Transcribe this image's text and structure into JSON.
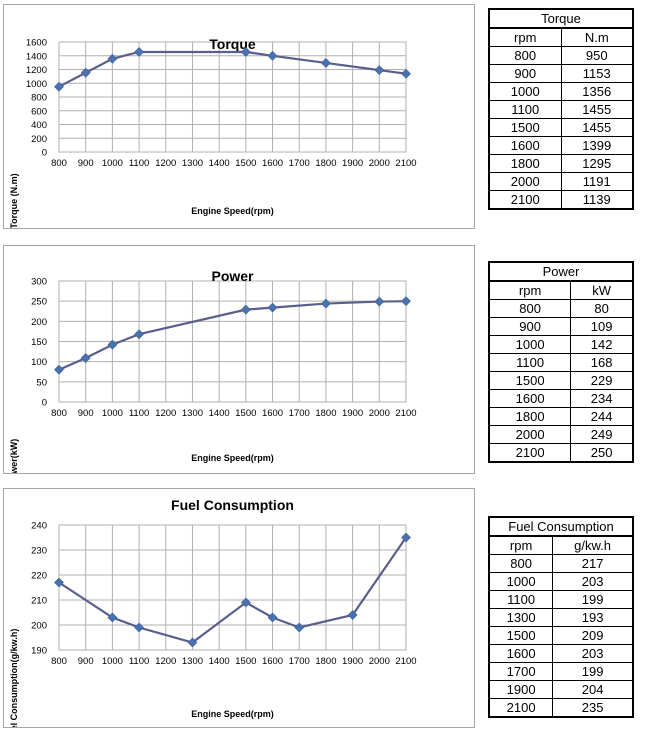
{
  "chart_data": [
    {
      "type": "line",
      "title": "Torque",
      "xlabel": "Engine Speed(rpm)",
      "ylabel": "Torque  (N.m)",
      "x_ticks": [
        "800",
        "900",
        "1000",
        "1100",
        "1200",
        "1300",
        "1400",
        "1500",
        "1600",
        "1700",
        "1800",
        "1900",
        "2000",
        "2100"
      ],
      "xlim": [
        800,
        2100
      ],
      "ylim": [
        0,
        1600
      ],
      "y_ticks": [
        "0",
        "200",
        "400",
        "600",
        "800",
        "1000",
        "1200",
        "1400",
        "1600"
      ],
      "grid": true,
      "series": [
        {
          "x": [
            800,
            900,
            1000,
            1100,
            1500,
            1600,
            1800,
            2000,
            2100
          ],
          "values": [
            950,
            1153,
            1356,
            1455,
            1455,
            1399,
            1295,
            1191,
            1139
          ]
        }
      ],
      "color": "#5a5e8c",
      "marker_color": "#4a72b0"
    },
    {
      "type": "line",
      "title": "Power",
      "xlabel": "Engine Speed(rpm)",
      "ylabel": "Power(kW)",
      "x_ticks": [
        "800",
        "900",
        "1000",
        "1100",
        "1200",
        "1300",
        "1400",
        "1500",
        "1600",
        "1700",
        "1800",
        "1900",
        "2000",
        "2100"
      ],
      "xlim": [
        800,
        2100
      ],
      "ylim": [
        0,
        300
      ],
      "y_ticks": [
        "0",
        "50",
        "100",
        "150",
        "200",
        "250",
        "300"
      ],
      "grid": true,
      "series": [
        {
          "x": [
            800,
            900,
            1000,
            1100,
            1500,
            1600,
            1800,
            2000,
            2100
          ],
          "values": [
            80,
            109,
            142,
            168,
            229,
            234,
            244,
            249,
            250
          ]
        }
      ],
      "color": "#5a5e8c",
      "marker_color": "#4a72b0"
    },
    {
      "type": "line",
      "title": "Fuel Consumption",
      "xlabel": "Engine Speed(rpm)",
      "ylabel": "Fuel Consumption(g/kw.h)",
      "x_ticks": [
        "800",
        "900",
        "1000",
        "1100",
        "1200",
        "1300",
        "1400",
        "1500",
        "1600",
        "1700",
        "1800",
        "1900",
        "2000",
        "2100"
      ],
      "xlim": [
        800,
        2100
      ],
      "ylim": [
        190,
        240
      ],
      "y_ticks": [
        "190",
        "200",
        "210",
        "220",
        "230",
        "240"
      ],
      "grid": true,
      "series": [
        {
          "x": [
            800,
            1000,
            1100,
            1300,
            1500,
            1600,
            1700,
            1900,
            2100
          ],
          "values": [
            217,
            203,
            199,
            193,
            209,
            203,
            199,
            204,
            235
          ]
        }
      ],
      "color": "#5a5e8c",
      "marker_color": "#4a72b0"
    }
  ],
  "tables": [
    {
      "title": "Torque",
      "headers": [
        "rpm",
        "N.m"
      ],
      "rows": [
        [
          "800",
          "950"
        ],
        [
          "900",
          "1153"
        ],
        [
          "1000",
          "1356"
        ],
        [
          "1100",
          "1455"
        ],
        [
          "1500",
          "1455"
        ],
        [
          "1600",
          "1399"
        ],
        [
          "1800",
          "1295"
        ],
        [
          "2000",
          "1191"
        ],
        [
          "2100",
          "1139"
        ]
      ]
    },
    {
      "title": "Power",
      "headers": [
        "rpm",
        "kW"
      ],
      "rows": [
        [
          "800",
          "80"
        ],
        [
          "900",
          "109"
        ],
        [
          "1000",
          "142"
        ],
        [
          "1100",
          "168"
        ],
        [
          "1500",
          "229"
        ],
        [
          "1600",
          "234"
        ],
        [
          "1800",
          "244"
        ],
        [
          "2000",
          "249"
        ],
        [
          "2100",
          "250"
        ]
      ]
    },
    {
      "title": "Fuel Consumption",
      "headers": [
        "rpm",
        "g/kw.h"
      ],
      "rows": [
        [
          "800",
          "217"
        ],
        [
          "1000",
          "203"
        ],
        [
          "1100",
          "199"
        ],
        [
          "1300",
          "193"
        ],
        [
          "1500",
          "209"
        ],
        [
          "1600",
          "203"
        ],
        [
          "1700",
          "199"
        ],
        [
          "1900",
          "204"
        ],
        [
          "2100",
          "235"
        ]
      ]
    }
  ]
}
